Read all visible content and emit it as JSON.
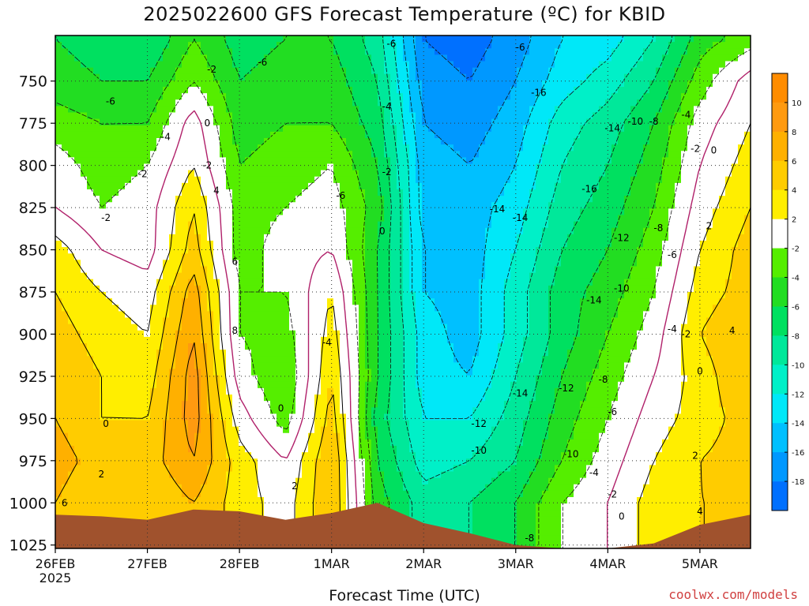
{
  "chart_data": {
    "type": "heatmap",
    "title": "2025022600 GFS Forecast Temperature (ºC) for KBID",
    "xlabel": "Forecast Time (UTC)",
    "ylabel": "",
    "credit": "coolwx.com/models",
    "x_axis": {
      "ticks": [
        "26FEB",
        "27FEB",
        "28FEB",
        "1MAR",
        "2MAR",
        "3MAR",
        "4MAR",
        "5MAR"
      ],
      "first_tick_year": "2025",
      "range_days": [
        0,
        7.55
      ]
    },
    "y_axis": {
      "unit": "hPa",
      "ticks": [
        750,
        775,
        800,
        825,
        850,
        875,
        900,
        925,
        950,
        975,
        1000,
        1025
      ],
      "range": [
        723,
        1027
      ],
      "reversed": true
    },
    "colorbar": {
      "ticks": [
        10,
        8,
        6,
        4,
        2,
        -2,
        -4,
        -6,
        -8,
        -10,
        -12,
        -14,
        -16,
        -18
      ],
      "bands": [
        {
          "from": 10,
          "to": 12,
          "color": "#ff8c00"
        },
        {
          "from": 8,
          "to": 10,
          "color": "#ff9a10"
        },
        {
          "from": 6,
          "to": 8,
          "color": "#ffb000"
        },
        {
          "from": 4,
          "to": 6,
          "color": "#ffcc00"
        },
        {
          "from": 2,
          "to": 4,
          "color": "#ffee00"
        },
        {
          "from": -2,
          "to": 2,
          "color": "#ffffff"
        },
        {
          "from": -4,
          "to": -2,
          "color": "#55ee00"
        },
        {
          "from": -6,
          "to": -4,
          "color": "#22dd22"
        },
        {
          "from": -8,
          "to": -6,
          "color": "#00e060"
        },
        {
          "from": -10,
          "to": -8,
          "color": "#00e89a"
        },
        {
          "from": -12,
          "to": -10,
          "color": "#00f0c8"
        },
        {
          "from": -14,
          "to": -12,
          "color": "#00e8f8"
        },
        {
          "from": -16,
          "to": -14,
          "color": "#00c0ff"
        },
        {
          "from": -18,
          "to": -16,
          "color": "#0098ff"
        },
        {
          "from": -20,
          "to": -18,
          "color": "#0070ff"
        }
      ]
    },
    "temperature_field": {
      "times_days": [
        0.0,
        0.5,
        1.0,
        1.5,
        2.0,
        2.5,
        3.0,
        3.5,
        4.0,
        4.5,
        5.0,
        5.5,
        6.0,
        6.5,
        7.0,
        7.55
      ],
      "levels_hpa": [
        725,
        750,
        775,
        800,
        825,
        850,
        875,
        900,
        925,
        950,
        975,
        1000
      ],
      "values_c": [
        [
          -6,
          -7,
          -8,
          -4,
          -7,
          -6,
          -6,
          -9,
          -18,
          -19,
          -17,
          -14,
          -13,
          -10,
          -5,
          -3
        ],
        [
          -5,
          -6,
          -6,
          -2,
          -6,
          -5,
          -5,
          -8,
          -17,
          -18,
          -16,
          -13,
          -11,
          -8,
          -3,
          1
        ],
        [
          -3,
          -4,
          -4,
          1,
          -5,
          -4,
          -4,
          -7,
          -16,
          -17,
          -15,
          -11,
          -9,
          -6,
          -1,
          2
        ],
        [
          -1,
          -3,
          -2,
          2,
          -4,
          -3,
          -2,
          -6,
          -15,
          -16,
          -14,
          -10,
          -8,
          -5,
          0,
          3
        ],
        [
          0,
          -2,
          -1,
          4,
          -3,
          -2,
          -1,
          -5,
          -15,
          -15,
          -13,
          -9,
          -7,
          -4,
          1,
          4
        ],
        [
          3,
          0,
          -1,
          5,
          -3,
          -1,
          0,
          -6,
          -14,
          -15,
          -12,
          -8,
          -6,
          -3,
          2,
          5
        ],
        [
          4,
          2,
          1,
          7,
          -2,
          -2,
          2,
          -6,
          -14,
          -15,
          -11,
          -7,
          -5,
          -2,
          3,
          5
        ],
        [
          5,
          3,
          2,
          8,
          -2,
          -3,
          3,
          -6,
          -13,
          -15,
          -11,
          -7,
          -4,
          -1,
          4,
          6
        ],
        [
          6,
          4,
          3,
          9,
          -1,
          -4,
          4,
          -6,
          -13,
          -14,
          -10,
          -6,
          -3,
          0,
          3,
          6
        ],
        [
          6,
          4,
          4,
          9,
          1,
          -3,
          5,
          -7,
          -12,
          -12,
          -9,
          -5,
          -2,
          1,
          3,
          5
        ],
        [
          7,
          5,
          5,
          8,
          3,
          0,
          6,
          -6,
          -11,
          -10,
          -8,
          -4,
          -1,
          2,
          4,
          5
        ],
        [
          6,
          4,
          4,
          6,
          3,
          1,
          6,
          -5,
          -9,
          -8,
          -6,
          -2,
          0,
          3,
          4,
          4
        ]
      ],
      "surface_pressure_hpa": [
        1007,
        1008,
        1010,
        1004,
        1005,
        1010,
        1006,
        1000,
        1012,
        1018,
        1025,
        1027,
        1027,
        1024,
        1013,
        1007
      ]
    },
    "contour_labels": [
      {
        "text": "-6",
        "t": 0.6,
        "p": 762
      },
      {
        "text": "-2",
        "t": 0.95,
        "p": 805
      },
      {
        "text": "-4",
        "t": 1.2,
        "p": 783
      },
      {
        "text": "-2",
        "t": 0.55,
        "p": 831
      },
      {
        "text": "0",
        "t": 0.55,
        "p": 953
      },
      {
        "text": "2",
        "t": 0.5,
        "p": 983
      },
      {
        "text": "6",
        "t": 0.1,
        "p": 1000
      },
      {
        "text": "-2",
        "t": 1.7,
        "p": 743
      },
      {
        "text": "0",
        "t": 1.65,
        "p": 775
      },
      {
        "text": "-2",
        "t": 1.65,
        "p": 800
      },
      {
        "text": "4",
        "t": 1.75,
        "p": 815
      },
      {
        "text": "6",
        "t": 1.95,
        "p": 857
      },
      {
        "text": "8",
        "t": 1.95,
        "p": 898
      },
      {
        "text": "-6",
        "t": 2.25,
        "p": 739
      },
      {
        "text": "0",
        "t": 2.45,
        "p": 944
      },
      {
        "text": "2",
        "t": 2.6,
        "p": 990
      },
      {
        "text": "-6",
        "t": 3.1,
        "p": 818
      },
      {
        "text": "-4",
        "t": 2.95,
        "p": 905
      },
      {
        "text": "-6",
        "t": 3.65,
        "p": 728
      },
      {
        "text": "-4",
        "t": 3.6,
        "p": 765
      },
      {
        "text": "-2",
        "t": 3.6,
        "p": 804
      },
      {
        "text": "0",
        "t": 3.55,
        "p": 839
      },
      {
        "text": "-16",
        "t": 5.25,
        "p": 757
      },
      {
        "text": "-14",
        "t": 4.8,
        "p": 826
      },
      {
        "text": "-14",
        "t": 5.05,
        "p": 831
      },
      {
        "text": "-14",
        "t": 5.05,
        "p": 935
      },
      {
        "text": "-12",
        "t": 4.6,
        "p": 953
      },
      {
        "text": "-10",
        "t": 4.6,
        "p": 969
      },
      {
        "text": "-8",
        "t": 5.15,
        "p": 1021
      },
      {
        "text": "-16",
        "t": 5.8,
        "p": 814
      },
      {
        "text": "-14",
        "t": 6.05,
        "p": 778
      },
      {
        "text": "-10",
        "t": 6.3,
        "p": 774
      },
      {
        "text": "-8",
        "t": 6.5,
        "p": 774
      },
      {
        "text": "-4",
        "t": 6.85,
        "p": 770
      },
      {
        "text": "-12",
        "t": 6.15,
        "p": 843
      },
      {
        "text": "-8",
        "t": 6.55,
        "p": 837
      },
      {
        "text": "-6",
        "t": 6.7,
        "p": 853
      },
      {
        "text": "-14",
        "t": 5.85,
        "p": 880
      },
      {
        "text": "-10",
        "t": 6.15,
        "p": 873
      },
      {
        "text": "-4",
        "t": 6.7,
        "p": 897
      },
      {
        "text": "-2",
        "t": 6.85,
        "p": 900
      },
      {
        "text": "-8",
        "t": 5.95,
        "p": 927
      },
      {
        "text": "-6",
        "t": 6.05,
        "p": 946
      },
      {
        "text": "-12",
        "t": 5.55,
        "p": 932
      },
      {
        "text": "-10",
        "t": 5.6,
        "p": 971
      },
      {
        "text": "-4",
        "t": 5.85,
        "p": 982
      },
      {
        "text": "-2",
        "t": 6.05,
        "p": 995
      },
      {
        "text": "0",
        "t": 6.15,
        "p": 1008
      },
      {
        "text": "4",
        "t": 7.0,
        "p": 1005
      },
      {
        "text": "2",
        "t": 6.95,
        "p": 972
      },
      {
        "text": "0",
        "t": 7.0,
        "p": 922
      },
      {
        "text": "4",
        "t": 7.35,
        "p": 898
      },
      {
        "text": "2",
        "t": 7.1,
        "p": 836
      },
      {
        "text": "-2",
        "t": 6.95,
        "p": 790
      },
      {
        "text": "0",
        "t": 7.15,
        "p": 791
      },
      {
        "text": "-6",
        "t": 5.05,
        "p": 730
      }
    ]
  }
}
